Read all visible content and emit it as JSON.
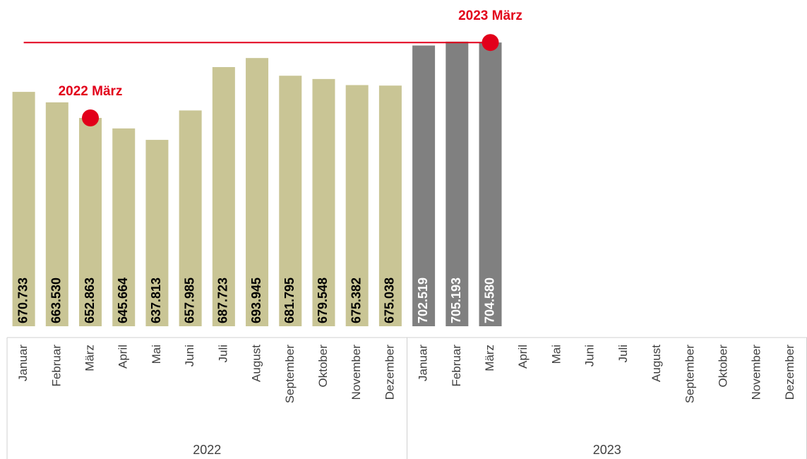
{
  "chart_data": {
    "type": "bar",
    "ylim": [
      510000,
      710000
    ],
    "groups": [
      {
        "label": "2022",
        "color": "#c9c595",
        "label_color": "#000000",
        "categories": [
          "Januar",
          "Februar",
          "März",
          "April",
          "Mai",
          "Juni",
          "Juli",
          "August",
          "September",
          "Oktober",
          "November",
          "Dezember"
        ],
        "values": [
          670733,
          663530,
          652863,
          645664,
          637813,
          657985,
          687723,
          693945,
          681795,
          679548,
          675382,
          675038
        ],
        "value_labels": [
          "670.733",
          "663.530",
          "652.863",
          "645.664",
          "637.813",
          "657.985",
          "687.723",
          "693.945",
          "681.795",
          "679.548",
          "675.382",
          "675.038"
        ]
      },
      {
        "label": "2023",
        "color": "#808080",
        "label_color": "#ffffff",
        "categories": [
          "Januar",
          "Februar",
          "März",
          "April",
          "Mai",
          "Juni",
          "Juli",
          "August",
          "September",
          "Oktober",
          "November",
          "Dezember"
        ],
        "values": [
          702519,
          705193,
          704580,
          null,
          null,
          null,
          null,
          null,
          null,
          null,
          null,
          null
        ],
        "value_labels": [
          "702.519",
          "705.193",
          "704.580",
          null,
          null,
          null,
          null,
          null,
          null,
          null,
          null,
          null
        ]
      }
    ],
    "annotations": [
      {
        "text": "2022 März",
        "group": 0,
        "index": 2,
        "color": "#e2001a",
        "line": false
      },
      {
        "text": "2023 März",
        "group": 1,
        "index": 2,
        "color": "#e2001a",
        "line": true
      }
    ]
  }
}
